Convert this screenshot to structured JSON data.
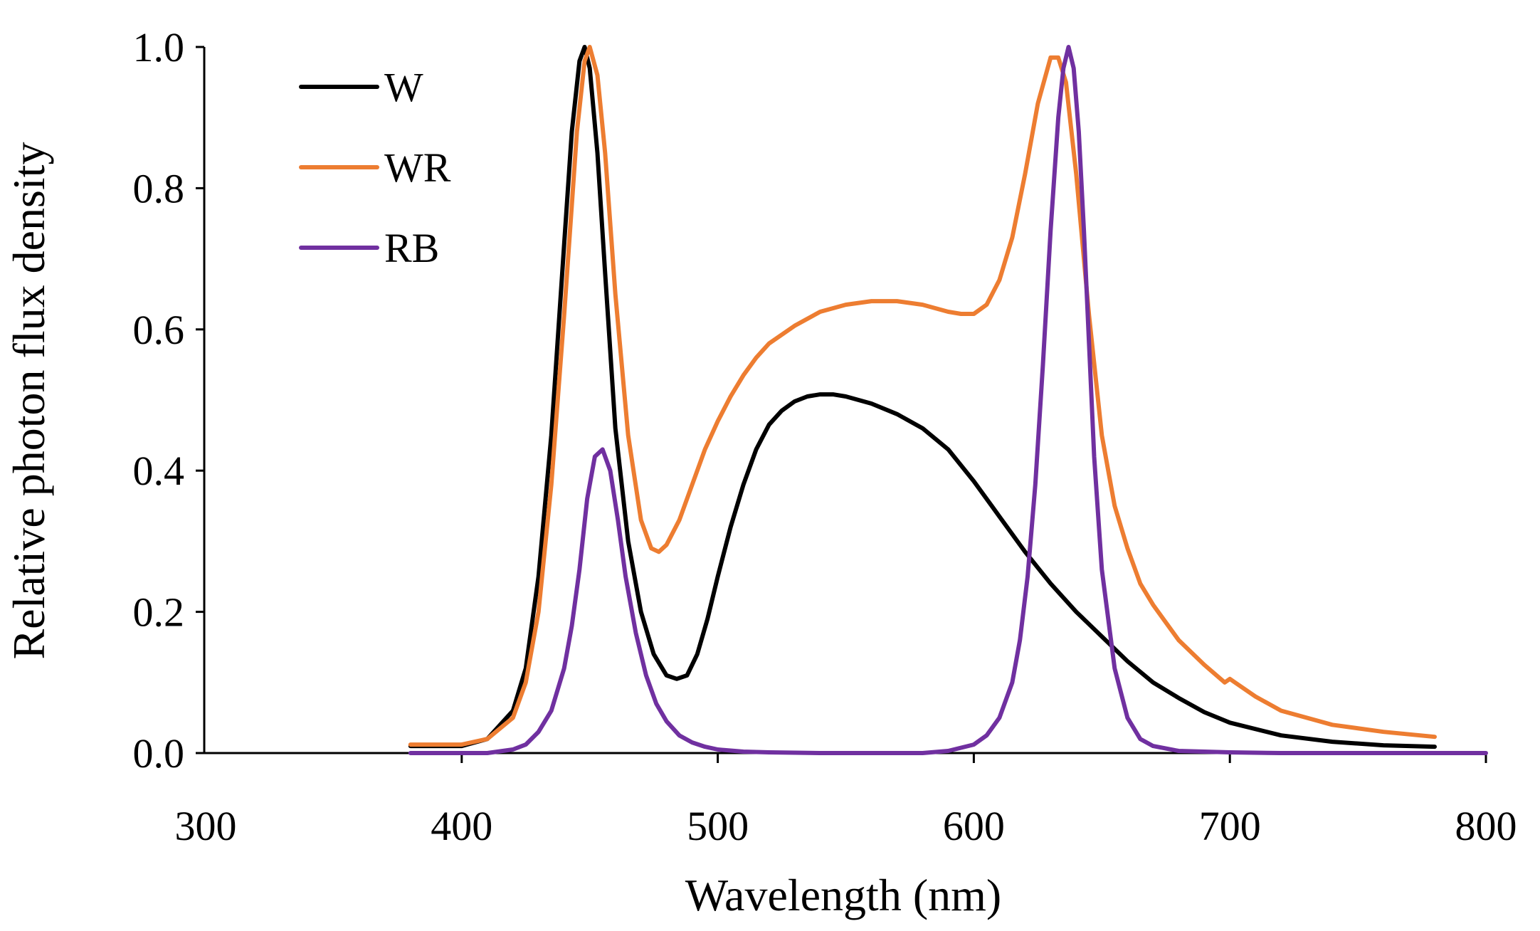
{
  "chart_data": {
    "type": "line",
    "title": "",
    "xlabel": "Wavelength (nm)",
    "ylabel": "Relative photon flux density",
    "xlim": [
      300,
      800
    ],
    "ylim": [
      0,
      1.0
    ],
    "xticks": [
      300,
      400,
      500,
      600,
      700,
      800
    ],
    "xtick_labels": [
      "300",
      "400",
      "500",
      "600",
      "700",
      "800"
    ],
    "yticks": [
      0,
      0.2,
      0.4,
      0.6,
      0.8,
      1.0
    ],
    "ytick_labels": [
      "0.0",
      "0.2",
      "0.4",
      "0.6",
      "0.8",
      "1.0"
    ],
    "grid": false,
    "legend_position": "top-left",
    "series": [
      {
        "name": "W",
        "color": "#000000",
        "x": [
          380,
          400,
          410,
          420,
          425,
          430,
          435,
          440,
          443,
          446,
          448,
          450,
          453,
          456,
          460,
          465,
          470,
          475,
          480,
          484,
          488,
          492,
          496,
          500,
          505,
          510,
          515,
          520,
          525,
          530,
          535,
          540,
          545,
          550,
          555,
          560,
          570,
          580,
          590,
          600,
          610,
          620,
          630,
          640,
          650,
          660,
          670,
          680,
          690,
          700,
          720,
          740,
          760,
          780
        ],
        "y": [
          0.01,
          0.01,
          0.02,
          0.06,
          0.12,
          0.25,
          0.45,
          0.72,
          0.88,
          0.98,
          1.0,
          0.97,
          0.85,
          0.68,
          0.46,
          0.3,
          0.2,
          0.14,
          0.11,
          0.105,
          0.11,
          0.14,
          0.19,
          0.25,
          0.32,
          0.38,
          0.43,
          0.465,
          0.485,
          0.498,
          0.505,
          0.508,
          0.508,
          0.505,
          0.5,
          0.495,
          0.48,
          0.46,
          0.43,
          0.385,
          0.335,
          0.285,
          0.24,
          0.2,
          0.165,
          0.13,
          0.1,
          0.078,
          0.058,
          0.043,
          0.025,
          0.016,
          0.011,
          0.009
        ]
      },
      {
        "name": "WR",
        "color": "#ED7D31",
        "x": [
          380,
          400,
          410,
          420,
          425,
          430,
          435,
          440,
          445,
          448,
          450,
          453,
          456,
          460,
          465,
          470,
          474,
          477,
          480,
          485,
          490,
          495,
          500,
          505,
          510,
          515,
          520,
          530,
          540,
          550,
          560,
          570,
          580,
          590,
          595,
          600,
          605,
          610,
          615,
          620,
          625,
          630,
          633,
          636,
          640,
          645,
          650,
          655,
          660,
          665,
          670,
          680,
          690,
          698,
          700,
          702,
          710,
          720,
          740,
          760,
          780
        ],
        "y": [
          0.012,
          0.012,
          0.02,
          0.05,
          0.1,
          0.2,
          0.38,
          0.62,
          0.88,
          0.98,
          1.0,
          0.96,
          0.85,
          0.65,
          0.45,
          0.33,
          0.29,
          0.285,
          0.295,
          0.33,
          0.38,
          0.43,
          0.47,
          0.505,
          0.535,
          0.56,
          0.58,
          0.605,
          0.625,
          0.635,
          0.64,
          0.64,
          0.635,
          0.625,
          0.622,
          0.622,
          0.635,
          0.67,
          0.73,
          0.82,
          0.92,
          0.985,
          0.985,
          0.95,
          0.82,
          0.62,
          0.45,
          0.35,
          0.29,
          0.24,
          0.21,
          0.16,
          0.125,
          0.1,
          0.105,
          0.1,
          0.08,
          0.06,
          0.04,
          0.03,
          0.023
        ]
      },
      {
        "name": "RB",
        "color": "#7030A0",
        "x": [
          380,
          410,
          420,
          425,
          430,
          435,
          440,
          443,
          446,
          449,
          452,
          455,
          458,
          461,
          464,
          468,
          472,
          476,
          480,
          485,
          490,
          495,
          500,
          510,
          520,
          540,
          560,
          580,
          590,
          600,
          605,
          610,
          615,
          618,
          621,
          624,
          627,
          630,
          633,
          635,
          637,
          639,
          641,
          643,
          645,
          647,
          650,
          655,
          660,
          665,
          670,
          680,
          700,
          720,
          750,
          800
        ],
        "y": [
          0.0,
          0.0,
          0.005,
          0.012,
          0.03,
          0.06,
          0.12,
          0.18,
          0.26,
          0.36,
          0.42,
          0.43,
          0.4,
          0.33,
          0.25,
          0.17,
          0.11,
          0.07,
          0.045,
          0.025,
          0.015,
          0.009,
          0.005,
          0.002,
          0.001,
          0.0,
          0.0,
          0.0,
          0.003,
          0.012,
          0.025,
          0.05,
          0.1,
          0.16,
          0.25,
          0.38,
          0.55,
          0.74,
          0.9,
          0.97,
          1.0,
          0.97,
          0.88,
          0.74,
          0.58,
          0.42,
          0.26,
          0.12,
          0.05,
          0.02,
          0.01,
          0.003,
          0.001,
          0.0,
          0.0,
          0.0
        ]
      }
    ]
  }
}
